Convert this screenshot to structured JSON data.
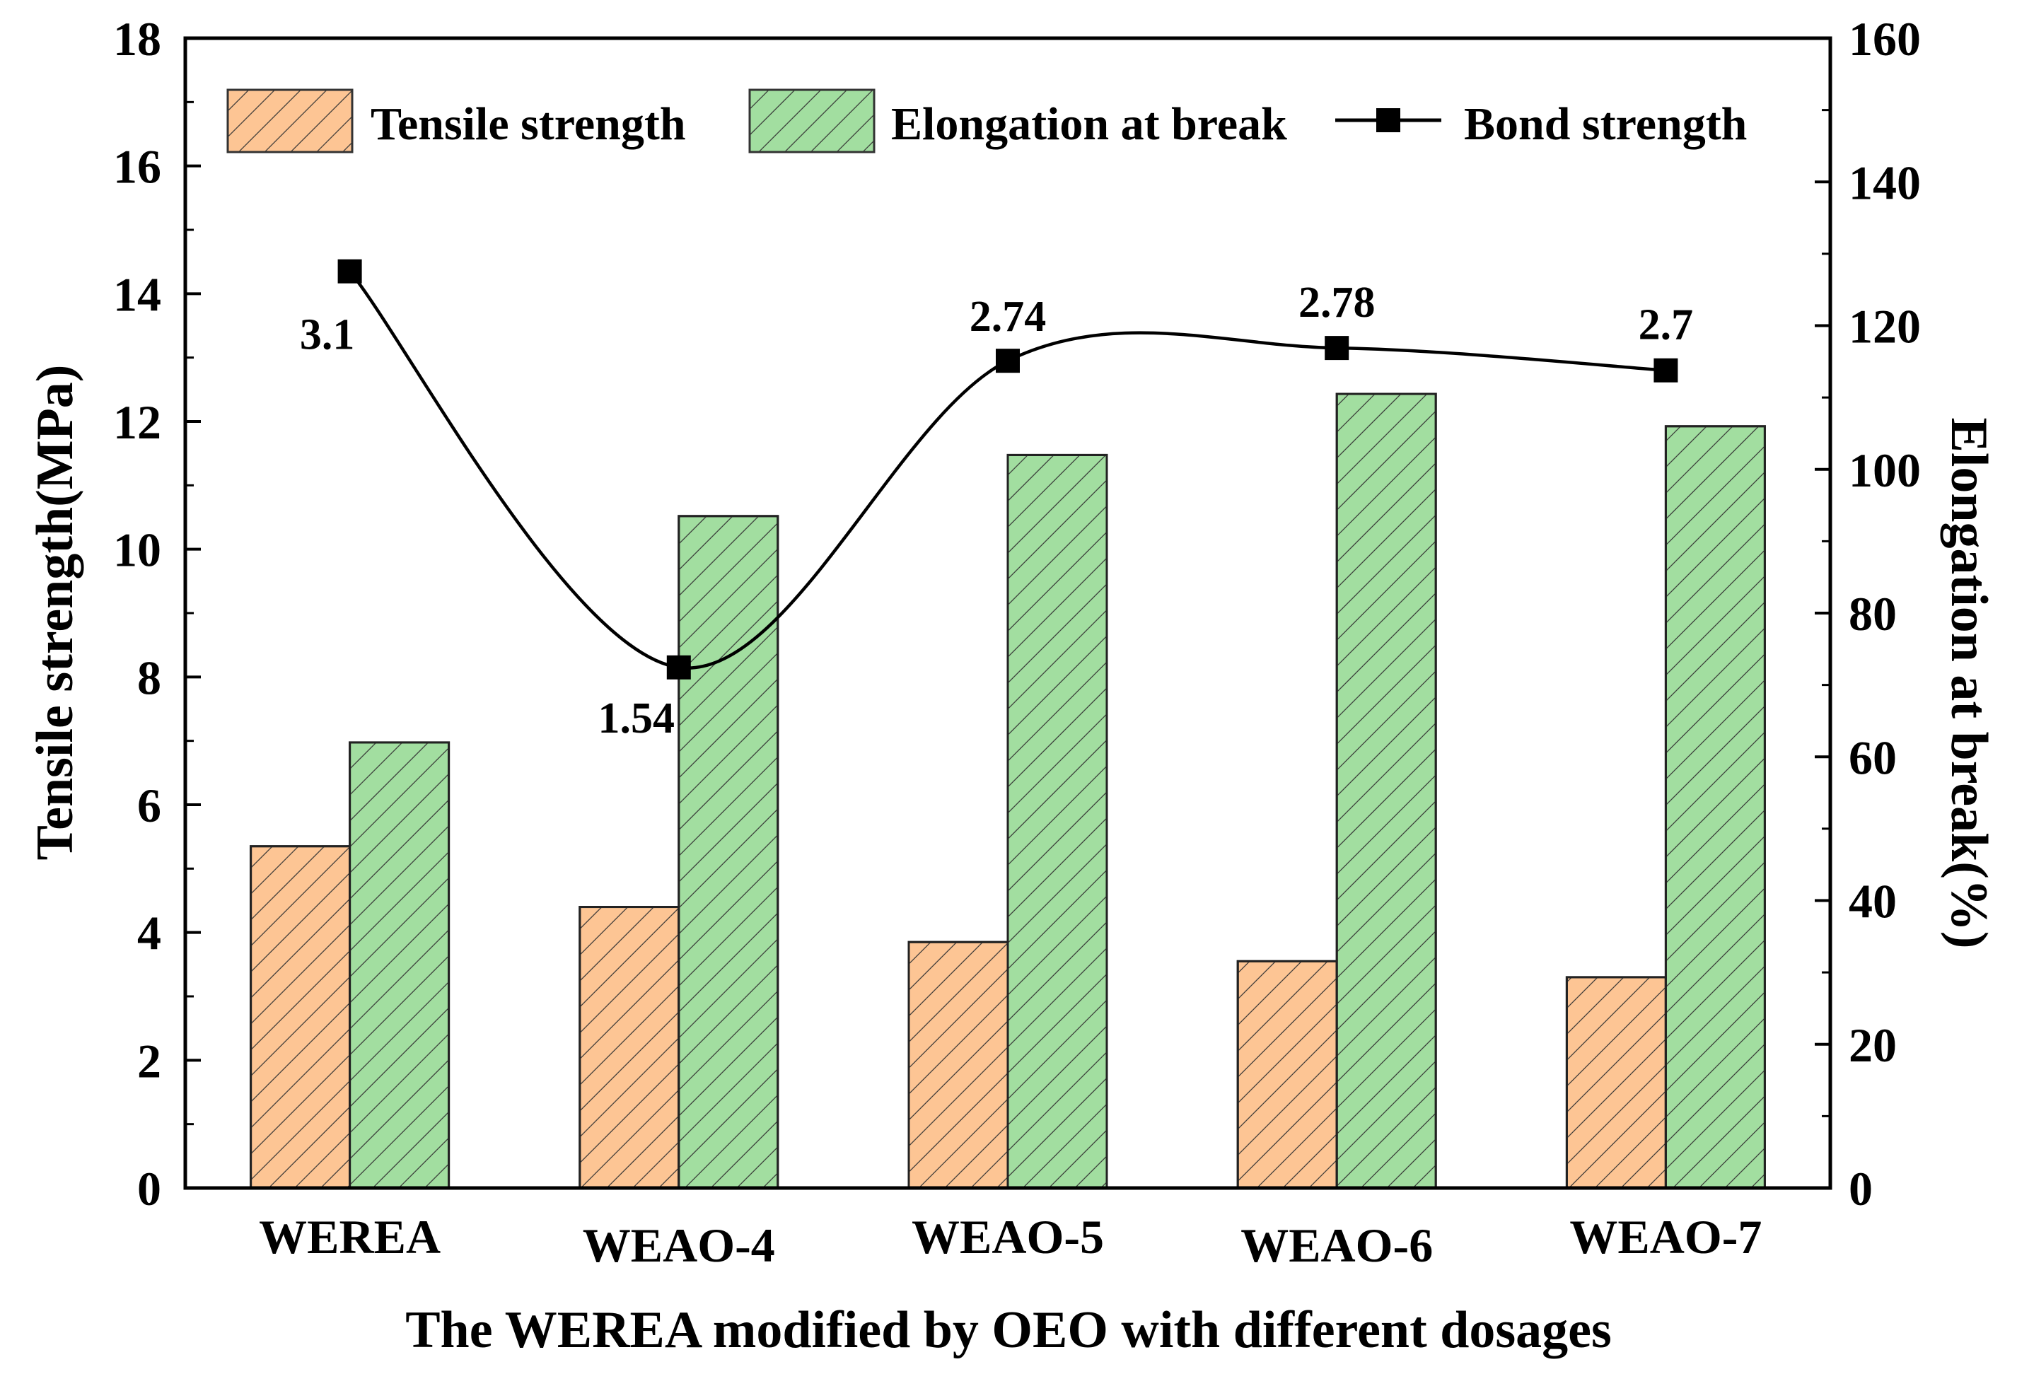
{
  "chart_data": {
    "type": "bar",
    "categories": [
      "WEREA",
      "WEAO-4",
      "WEAO-5",
      "WEAO-6",
      "WEAO-7"
    ],
    "series": [
      {
        "name": "Tensile strength",
        "axis": "left",
        "kind": "bar",
        "values": [
          5.35,
          4.4,
          3.85,
          3.55,
          3.3
        ],
        "color": "#fdc594"
      },
      {
        "name": "Elongation at break",
        "axis": "right",
        "kind": "bar",
        "values": [
          62,
          93.5,
          102,
          110.5,
          106
        ],
        "color": "#a2dea0"
      },
      {
        "name": "Bond strength",
        "axis": "left",
        "kind": "line",
        "values": [
          3.1,
          1.54,
          2.74,
          2.78,
          2.7
        ],
        "plotted_left_values": [
          14.35,
          8.15,
          12.95,
          13.15,
          12.8
        ],
        "labels": [
          "3.1",
          "1.54",
          "2.74",
          "2.78",
          "2.7"
        ],
        "color": "#000000"
      }
    ],
    "title": "",
    "xlabel": "The WEREA modified by OEO with different dosages",
    "ylabel": "Tensile strength(MPa)",
    "y2label": "Elongation at break(%)",
    "ylim": [
      0,
      18
    ],
    "y2lim": [
      0,
      160
    ],
    "yticks": [
      "0",
      "2",
      "4",
      "6",
      "8",
      "10",
      "12",
      "14",
      "16",
      "18"
    ],
    "y2ticks": [
      "0",
      "20",
      "40",
      "60",
      "80",
      "100",
      "120",
      "140",
      "160"
    ],
    "legend": [
      "Tensile strength",
      "Elongation at break",
      "Bond strength"
    ],
    "legend_position": "top"
  }
}
